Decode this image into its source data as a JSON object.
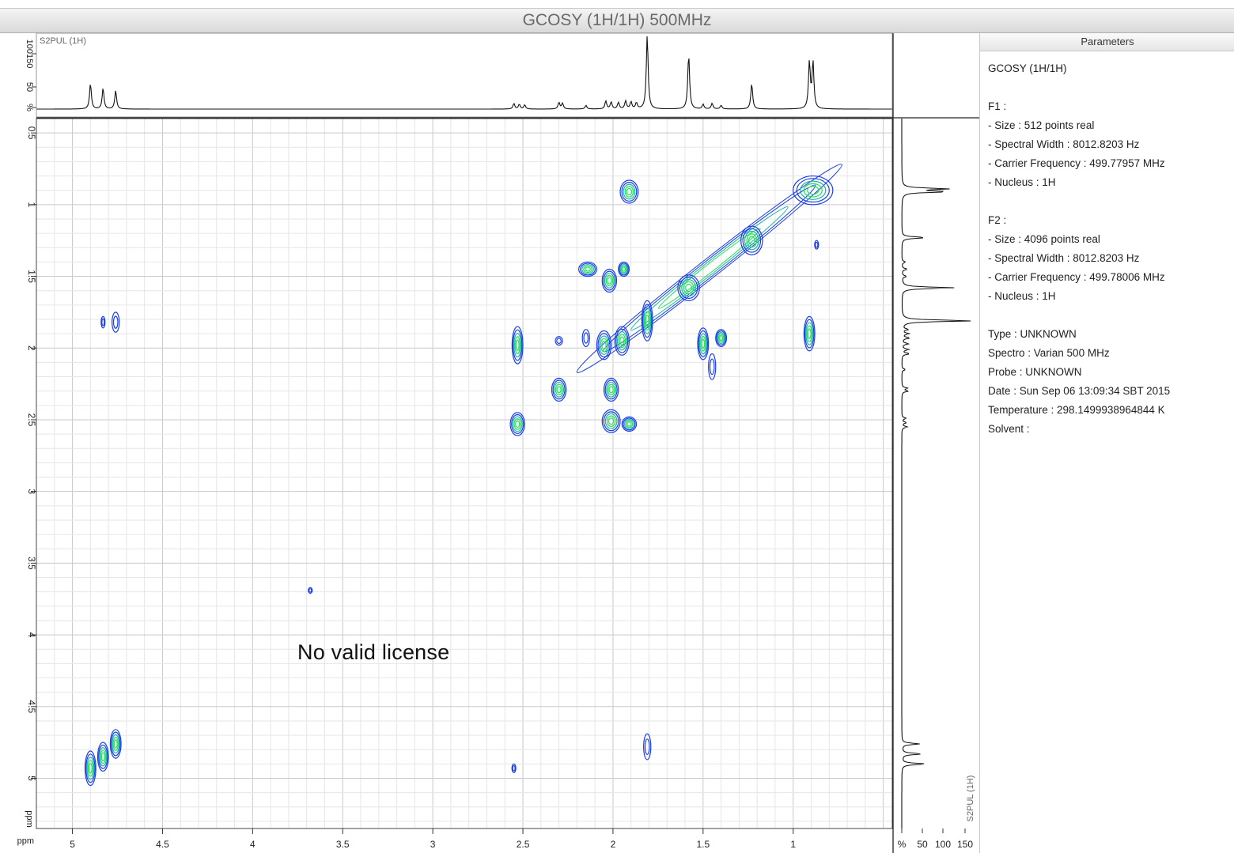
{
  "window": {
    "title": "GCOSY  (1H/1H)  500MHz"
  },
  "parameters": {
    "header": "Parameters",
    "experiment": "GCOSY  (1H/1H)",
    "f1_label": "F1 :",
    "f1": [
      "- Size : 512 points real",
      "- Spectral Width : 8012.8203 Hz",
      "- Carrier Frequency : 499.77957 MHz",
      "- Nucleus : 1H"
    ],
    "f2_label": "F2 :",
    "f2": [
      "- Size : 4096 points real",
      "- Spectral Width : 8012.8203 Hz",
      "- Carrier Frequency : 499.78006 MHz",
      "- Nucleus : 1H"
    ],
    "info": [
      "Type : UNKNOWN",
      "Spectro : Varian 500 MHz",
      "Probe : UNKNOWN",
      "Date : Sun Sep 06 13:09:34 SBT 2015",
      "Temperature : 298.1499938964844 K",
      "Solvent :"
    ]
  },
  "watermark": "No valid license",
  "colors": {
    "outer": "#1a3ee8",
    "mid": "#1bb5a8",
    "inner": "#22e05a",
    "trace": "#111111"
  },
  "chart_data": {
    "type": "heatmap",
    "title": "GCOSY  (1H/1H)  500MHz",
    "xlabel": "ppm",
    "ylabel": "ppm",
    "xlim": [
      5.2,
      0.45
    ],
    "ylim": [
      0.4,
      5.35
    ],
    "x_ticks": [
      "5",
      "4.5",
      "4",
      "3.5",
      "3",
      "2.5",
      "2",
      "1.5",
      "1"
    ],
    "x_tick_values": [
      5,
      4.5,
      4,
      3.5,
      3,
      2.5,
      2,
      1.5,
      1
    ],
    "y_ticks": [
      "0.5",
      "1",
      "1.5",
      "2",
      "2.5",
      "3",
      "3.5",
      "4",
      "4.5",
      "5"
    ],
    "y_tick_values": [
      0.5,
      1,
      1.5,
      2,
      2.5,
      3,
      3.5,
      4,
      4.5,
      5
    ],
    "grid": true,
    "top_projection": {
      "label": "S2PUL  (1H)",
      "y_axis_labels": [
        "%",
        "50",
        "100150"
      ],
      "peaks": [
        {
          "ppm": 4.9,
          "h": 55
        },
        {
          "ppm": 4.83,
          "h": 45
        },
        {
          "ppm": 4.76,
          "h": 40
        },
        {
          "ppm": 2.55,
          "h": 12
        },
        {
          "ppm": 2.52,
          "h": 10
        },
        {
          "ppm": 2.49,
          "h": 9
        },
        {
          "ppm": 2.3,
          "h": 14
        },
        {
          "ppm": 2.28,
          "h": 12
        },
        {
          "ppm": 2.15,
          "h": 8
        },
        {
          "ppm": 2.04,
          "h": 17
        },
        {
          "ppm": 2.01,
          "h": 15
        },
        {
          "ppm": 1.97,
          "h": 14
        },
        {
          "ppm": 1.93,
          "h": 17
        },
        {
          "ppm": 1.9,
          "h": 15
        },
        {
          "ppm": 1.87,
          "h": 13
        },
        {
          "ppm": 1.81,
          "h": 160
        },
        {
          "ppm": 1.58,
          "h": 118
        },
        {
          "ppm": 1.5,
          "h": 10
        },
        {
          "ppm": 1.45,
          "h": 12
        },
        {
          "ppm": 1.4,
          "h": 8
        },
        {
          "ppm": 1.23,
          "h": 55
        },
        {
          "ppm": 0.91,
          "h": 100
        },
        {
          "ppm": 0.89,
          "h": 100
        }
      ]
    },
    "right_projection": {
      "label": "S2PUL  (1H)",
      "x_axis_labels": [
        "%",
        "50",
        "100",
        "150"
      ]
    },
    "contours": [
      {
        "x": 0.89,
        "y": 0.9,
        "rx": 0.11,
        "ry": 0.1
      },
      {
        "x": 1.23,
        "y": 1.25,
        "rx": 0.06,
        "ry": 0.1
      },
      {
        "x": 1.58,
        "y": 1.58,
        "rx": 0.06,
        "ry": 0.09
      },
      {
        "x": 1.81,
        "y": 1.81,
        "rx": 0.03,
        "ry": 0.14
      },
      {
        "x": 1.91,
        "y": 0.91,
        "rx": 0.05,
        "ry": 0.08
      },
      {
        "x": 2.14,
        "y": 1.45,
        "rx": 0.05,
        "ry": 0.05
      },
      {
        "x": 2.02,
        "y": 1.53,
        "rx": 0.04,
        "ry": 0.08
      },
      {
        "x": 1.94,
        "y": 1.45,
        "rx": 0.03,
        "ry": 0.05
      },
      {
        "x": 4.9,
        "y": 4.93,
        "rx": 0.03,
        "ry": 0.12
      },
      {
        "x": 4.83,
        "y": 4.85,
        "rx": 0.03,
        "ry": 0.1
      },
      {
        "x": 4.76,
        "y": 4.76,
        "rx": 0.03,
        "ry": 0.1
      },
      {
        "x": 4.76,
        "y": 1.82,
        "rx": 0.02,
        "ry": 0.07
      },
      {
        "x": 4.83,
        "y": 1.82,
        "rx": 0.01,
        "ry": 0.04
      },
      {
        "x": 2.53,
        "y": 1.98,
        "rx": 0.03,
        "ry": 0.13
      },
      {
        "x": 2.53,
        "y": 2.53,
        "rx": 0.04,
        "ry": 0.08
      },
      {
        "x": 2.3,
        "y": 2.29,
        "rx": 0.04,
        "ry": 0.08
      },
      {
        "x": 2.01,
        "y": 2.29,
        "rx": 0.04,
        "ry": 0.08
      },
      {
        "x": 2.01,
        "y": 2.51,
        "rx": 0.05,
        "ry": 0.08
      },
      {
        "x": 1.91,
        "y": 2.53,
        "rx": 0.04,
        "ry": 0.05
      },
      {
        "x": 1.5,
        "y": 1.97,
        "rx": 0.03,
        "ry": 0.11
      },
      {
        "x": 1.45,
        "y": 2.13,
        "rx": 0.02,
        "ry": 0.09
      },
      {
        "x": 1.4,
        "y": 1.93,
        "rx": 0.03,
        "ry": 0.06
      },
      {
        "x": 0.91,
        "y": 1.9,
        "rx": 0.03,
        "ry": 0.12
      },
      {
        "x": 2.15,
        "y": 1.93,
        "rx": 0.02,
        "ry": 0.06
      },
      {
        "x": 2.05,
        "y": 1.98,
        "rx": 0.04,
        "ry": 0.1
      },
      {
        "x": 1.95,
        "y": 1.95,
        "rx": 0.04,
        "ry": 0.1
      },
      {
        "x": 1.81,
        "y": 4.78,
        "rx": 0.02,
        "ry": 0.09
      },
      {
        "x": 2.55,
        "y": 4.93,
        "rx": 0.01,
        "ry": 0.03
      },
      {
        "x": 3.68,
        "y": 3.69,
        "rx": 0.01,
        "ry": 0.02
      },
      {
        "x": 2.3,
        "y": 1.95,
        "rx": 0.02,
        "ry": 0.03
      },
      {
        "x": 0.87,
        "y": 1.28,
        "rx": 0.005,
        "ry": 0.03
      }
    ]
  }
}
